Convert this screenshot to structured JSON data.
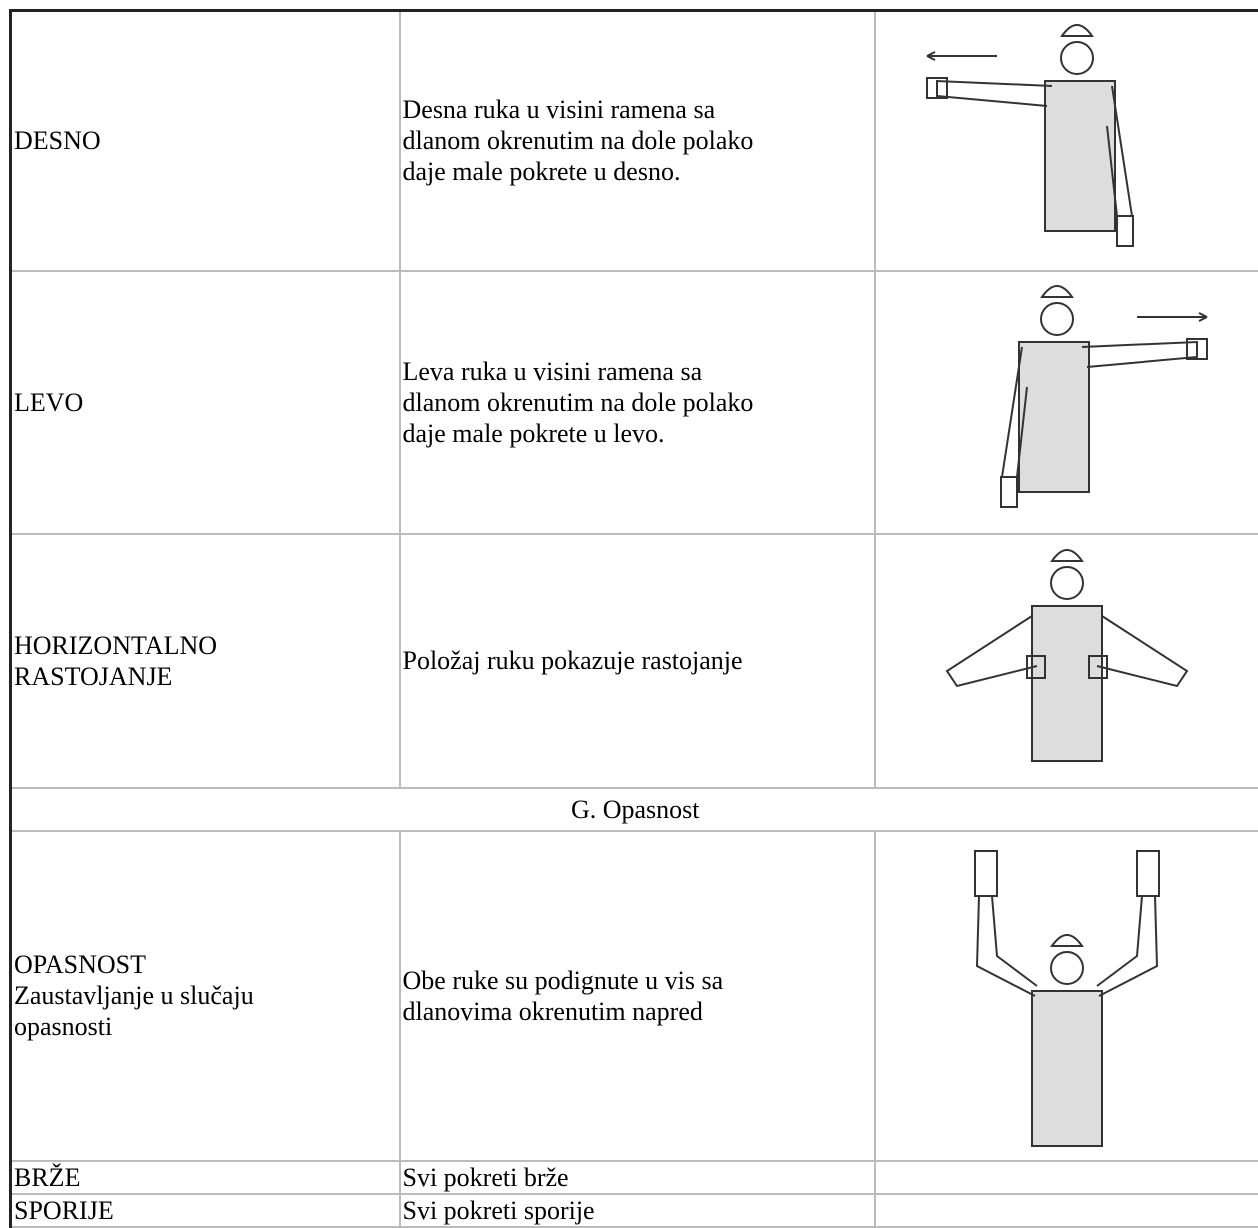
{
  "table": {
    "rows": [
      {
        "label": [
          "DESNO"
        ],
        "description": [
          "Desna ruka u visini ramena sa",
          "dlanom okrenutim na dole polako",
          "daje male pokrete u desno."
        ]
      },
      {
        "label": [
          "LEVO"
        ],
        "description": [
          "Leva ruka u visini ramena sa",
          "dlanom okrenutim na dole polako",
          "daje male pokrete u levo."
        ]
      },
      {
        "label": [
          "HORIZONTALNO",
          "RASTOJANJE"
        ],
        "description": [
          "Položaj ruku pokazuje rastojanje"
        ]
      },
      {
        "section": "G. Opasnost"
      },
      {
        "label": [
          "OPASNOST",
          "Zaustavljanje u slučaju",
          "opasnosti"
        ],
        "description": [
          "Obe ruke su podignute u vis sa",
          "dlanovima okrenutim napred"
        ]
      },
      {
        "label": [
          "BRŽE"
        ],
        "description": [
          "Svi pokreti brže"
        ]
      },
      {
        "label": [
          "SPORIJE"
        ],
        "description": [
          "Svi pokreti sporije"
        ]
      }
    ]
  }
}
